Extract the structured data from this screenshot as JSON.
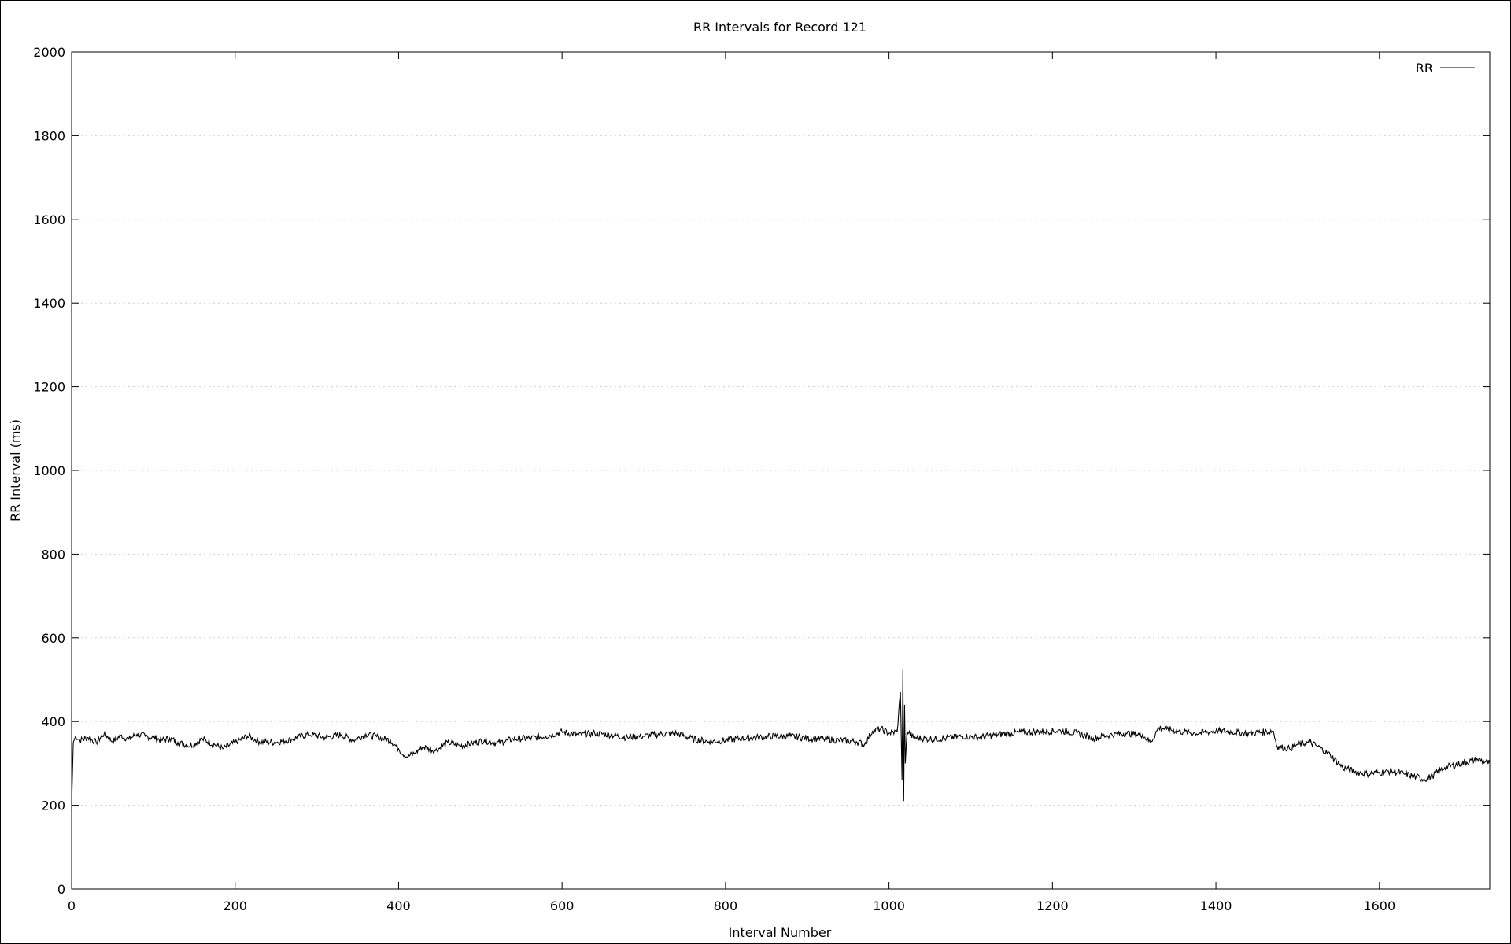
{
  "chart_data": {
    "type": "line",
    "title": "RR Intervals for Record 121",
    "xlabel": "Interval Number",
    "ylabel": "RR Interval (ms)",
    "xlim": [
      0,
      1735
    ],
    "ylim": [
      0,
      2000
    ],
    "xticks": [
      0,
      200,
      400,
      600,
      800,
      1000,
      1200,
      1400,
      1600
    ],
    "yticks": [
      0,
      200,
      400,
      600,
      800,
      1000,
      1200,
      1400,
      1600,
      1800,
      2000
    ],
    "grid": "horizontal",
    "legend": {
      "position": "top-right",
      "entries": [
        "RR"
      ]
    },
    "series": [
      {
        "name": "RR",
        "color": "#000000",
        "points": [
          [
            0,
            200
          ],
          [
            2,
            350
          ],
          [
            5,
            365
          ],
          [
            10,
            355
          ],
          [
            20,
            362
          ],
          [
            30,
            350
          ],
          [
            40,
            372
          ],
          [
            50,
            352
          ],
          [
            60,
            366
          ],
          [
            70,
            358
          ],
          [
            80,
            370
          ],
          [
            90,
            365
          ],
          [
            100,
            362
          ],
          [
            110,
            355
          ],
          [
            120,
            360
          ],
          [
            130,
            350
          ],
          [
            145,
            342
          ],
          [
            160,
            358
          ],
          [
            175,
            345
          ],
          [
            185,
            335
          ],
          [
            200,
            350
          ],
          [
            215,
            365
          ],
          [
            230,
            352
          ],
          [
            250,
            350
          ],
          [
            270,
            358
          ],
          [
            290,
            370
          ],
          [
            310,
            362
          ],
          [
            330,
            368
          ],
          [
            345,
            355
          ],
          [
            360,
            370
          ],
          [
            375,
            362
          ],
          [
            390,
            355
          ],
          [
            400,
            335
          ],
          [
            410,
            315
          ],
          [
            420,
            325
          ],
          [
            430,
            340
          ],
          [
            445,
            330
          ],
          [
            460,
            350
          ],
          [
            475,
            342
          ],
          [
            490,
            348
          ],
          [
            505,
            355
          ],
          [
            520,
            348
          ],
          [
            540,
            358
          ],
          [
            560,
            360
          ],
          [
            580,
            365
          ],
          [
            600,
            375
          ],
          [
            620,
            368
          ],
          [
            640,
            372
          ],
          [
            660,
            368
          ],
          [
            680,
            362
          ],
          [
            700,
            365
          ],
          [
            720,
            370
          ],
          [
            740,
            372
          ],
          [
            760,
            358
          ],
          [
            780,
            352
          ],
          [
            800,
            355
          ],
          [
            820,
            360
          ],
          [
            840,
            362
          ],
          [
            860,
            365
          ],
          [
            880,
            365
          ],
          [
            900,
            360
          ],
          [
            920,
            358
          ],
          [
            940,
            355
          ],
          [
            960,
            352
          ],
          [
            970,
            345
          ],
          [
            980,
            378
          ],
          [
            990,
            382
          ],
          [
            1000,
            372
          ],
          [
            1010,
            376
          ],
          [
            1014,
            470
          ],
          [
            1016,
            260
          ],
          [
            1017,
            525
          ],
          [
            1018,
            210
          ],
          [
            1019,
            440
          ],
          [
            1020,
            300
          ],
          [
            1022,
            378
          ],
          [
            1030,
            362
          ],
          [
            1050,
            358
          ],
          [
            1070,
            360
          ],
          [
            1090,
            365
          ],
          [
            1110,
            362
          ],
          [
            1130,
            368
          ],
          [
            1150,
            372
          ],
          [
            1170,
            375
          ],
          [
            1190,
            376
          ],
          [
            1210,
            378
          ],
          [
            1230,
            372
          ],
          [
            1250,
            360
          ],
          [
            1270,
            368
          ],
          [
            1290,
            372
          ],
          [
            1310,
            368
          ],
          [
            1320,
            350
          ],
          [
            1330,
            385
          ],
          [
            1340,
            382
          ],
          [
            1360,
            375
          ],
          [
            1380,
            372
          ],
          [
            1400,
            378
          ],
          [
            1420,
            375
          ],
          [
            1440,
            372
          ],
          [
            1460,
            375
          ],
          [
            1470,
            378
          ],
          [
            1475,
            340
          ],
          [
            1490,
            335
          ],
          [
            1500,
            345
          ],
          [
            1515,
            350
          ],
          [
            1525,
            340
          ],
          [
            1540,
            320
          ],
          [
            1555,
            290
          ],
          [
            1570,
            280
          ],
          [
            1585,
            275
          ],
          [
            1600,
            278
          ],
          [
            1615,
            282
          ],
          [
            1630,
            275
          ],
          [
            1645,
            268
          ],
          [
            1655,
            262
          ],
          [
            1665,
            270
          ],
          [
            1680,
            290
          ],
          [
            1700,
            300
          ],
          [
            1720,
            310
          ],
          [
            1735,
            300
          ]
        ]
      }
    ]
  }
}
